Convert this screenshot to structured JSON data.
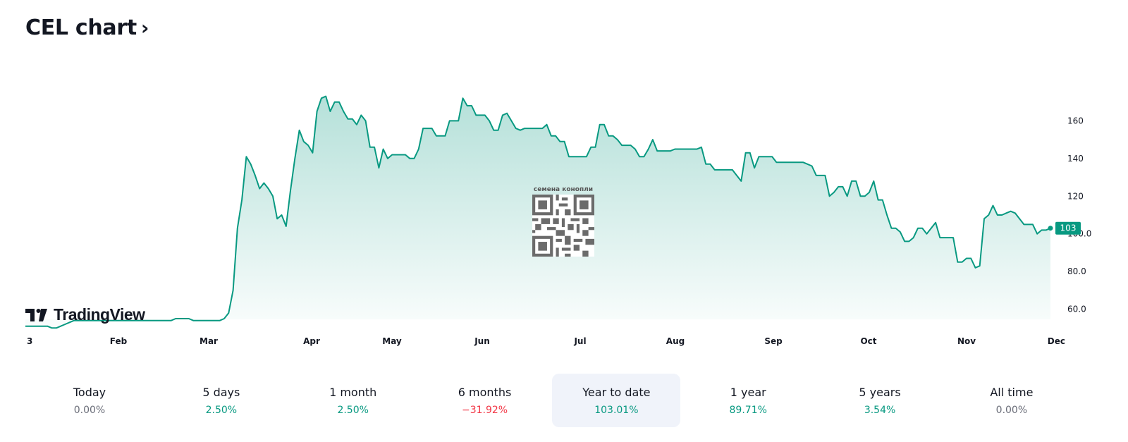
{
  "header": {
    "title": "CEL chart",
    "chevron": "›"
  },
  "branding": {
    "logo_text": "TradingView"
  },
  "watermark": {
    "caption": "семена конопли"
  },
  "colors": {
    "line": "#089981",
    "accent_label": "#089981",
    "positive": "#089981",
    "negative": "#f23645",
    "neutral": "#6a6d78"
  },
  "chart_data": {
    "type": "area",
    "x_ticks": [
      "3",
      "Feb",
      "Mar",
      "Apr",
      "May",
      "Jun",
      "Jul",
      "Aug",
      "Sep",
      "Oct",
      "Nov",
      "Dec"
    ],
    "y_ticks": [
      "60.0",
      "80.0",
      "100.0",
      "120",
      "140",
      "160"
    ],
    "ylim": [
      52,
      168
    ],
    "last_value": 103,
    "last_value_label": "103",
    "grid": false,
    "series": [
      {
        "values": [
          51,
          51,
          51,
          51,
          51,
          51,
          50,
          50,
          51,
          52,
          53,
          54,
          54,
          54,
          54,
          54,
          54,
          54,
          54,
          54,
          54,
          54,
          54,
          54,
          54,
          54,
          54,
          54,
          54,
          54,
          54,
          54,
          54,
          54,
          55,
          55,
          55,
          55,
          54,
          54,
          54,
          54,
          54,
          54,
          54,
          55,
          58,
          70,
          103,
          118,
          141,
          137,
          131,
          124,
          127,
          124,
          120,
          108,
          110,
          104,
          123,
          140,
          155,
          149,
          147,
          143,
          165,
          172,
          173,
          165,
          170,
          170,
          165,
          161,
          161,
          158,
          163,
          160,
          146,
          146,
          135,
          145,
          140,
          142,
          142,
          142,
          142,
          140,
          140,
          145,
          156,
          156,
          156,
          152,
          152,
          152,
          160,
          160,
          160,
          172,
          168,
          168,
          163,
          163,
          163,
          160,
          155,
          155,
          163,
          164,
          160,
          156,
          155,
          156,
          156,
          156,
          156,
          156,
          158,
          152,
          152,
          149,
          149,
          141,
          141,
          141,
          141,
          141,
          146,
          146,
          158,
          158,
          152,
          152,
          150,
          147,
          147,
          147,
          145,
          141,
          141,
          145,
          150,
          144,
          144,
          144,
          144,
          145,
          145,
          145,
          145,
          145,
          145,
          146,
          137,
          137,
          134,
          134,
          134,
          134,
          134,
          131,
          128,
          143,
          143,
          135,
          141,
          141,
          141,
          141,
          138,
          138,
          138,
          138,
          138,
          138,
          138,
          137,
          136,
          131,
          131,
          131,
          120,
          122,
          125,
          125,
          120,
          128,
          128,
          120,
          120,
          122,
          128,
          118,
          118,
          110,
          103,
          103,
          101,
          96,
          96,
          98,
          103,
          103,
          100,
          103,
          106,
          98,
          98,
          98,
          98,
          85,
          85,
          87,
          87,
          82,
          83,
          108,
          110,
          115,
          110,
          110,
          111,
          112,
          111,
          108,
          105,
          105,
          105,
          100,
          102,
          102,
          103
        ]
      }
    ]
  },
  "periods": [
    {
      "label": "Today",
      "value": "0.00%",
      "tone": "neutral",
      "active": false
    },
    {
      "label": "5 days",
      "value": "2.50%",
      "tone": "pos",
      "active": false
    },
    {
      "label": "1 month",
      "value": "2.50%",
      "tone": "pos",
      "active": false
    },
    {
      "label": "6 months",
      "value": "−31.92%",
      "tone": "neg",
      "active": false
    },
    {
      "label": "Year to date",
      "value": "103.01%",
      "tone": "pos",
      "active": true
    },
    {
      "label": "1 year",
      "value": "89.71%",
      "tone": "pos",
      "active": false
    },
    {
      "label": "5 years",
      "value": "3.54%",
      "tone": "pos",
      "active": false
    },
    {
      "label": "All time",
      "value": "0.00%",
      "tone": "neutral",
      "active": false
    }
  ]
}
